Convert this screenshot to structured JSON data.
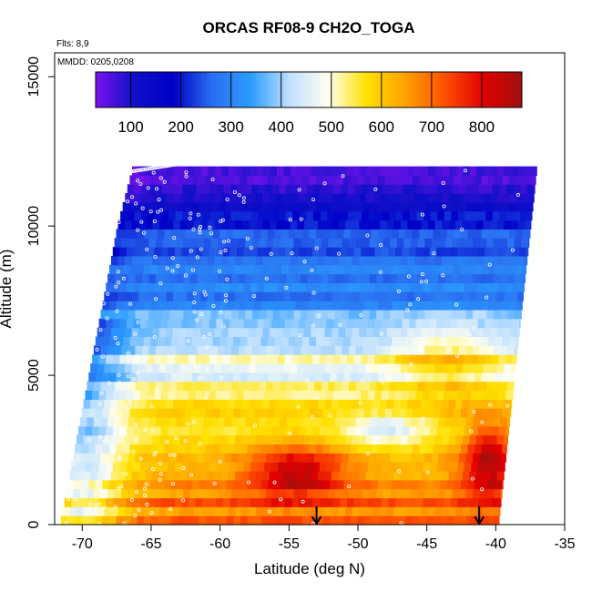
{
  "chart_data": {
    "type": "heatmap",
    "title": "ORCAS RF08-9 CH2O_TOGA",
    "flights_label": "Flts: 8,9",
    "mmdd_label": "MMDD: 0205,0208",
    "xlabel": "Latitude (deg N)",
    "ylabel": "Altitude (m)",
    "xlim": [
      -72,
      -35
    ],
    "ylim": [
      0,
      15800
    ],
    "x_ticks": [
      -70,
      -65,
      -60,
      -55,
      -50,
      -45,
      -40,
      -35
    ],
    "y_ticks": [
      0,
      5000,
      10000,
      15000
    ],
    "colorbar": {
      "vmin": 30,
      "vmax": 880,
      "ticks": [
        100,
        200,
        300,
        400,
        500,
        600,
        700,
        800
      ],
      "colors": [
        "#7a12ee",
        "#1010c8",
        "#0000c8",
        "#2a6ef0",
        "#2a9cff",
        "#bfe0ff",
        "#fffff0",
        "#ffe100",
        "#ffa000",
        "#ff5000",
        "#e10000",
        "#a01010"
      ]
    },
    "arrows_lat": [
      -53,
      -41.2
    ],
    "legend": "none",
    "grid": false,
    "field_description": [
      {
        "alt_range": [
          8000,
          12000
        ],
        "value_range": [
          120,
          330
        ]
      },
      {
        "alt_range": [
          5500,
          8000
        ],
        "value_range": [
          300,
          500
        ]
      },
      {
        "alt_range": [
          3000,
          5500
        ],
        "value_range": [
          450,
          620
        ]
      },
      {
        "alt_range": [
          0,
          3000
        ],
        "value_range": [
          500,
          760
        ]
      }
    ]
  }
}
